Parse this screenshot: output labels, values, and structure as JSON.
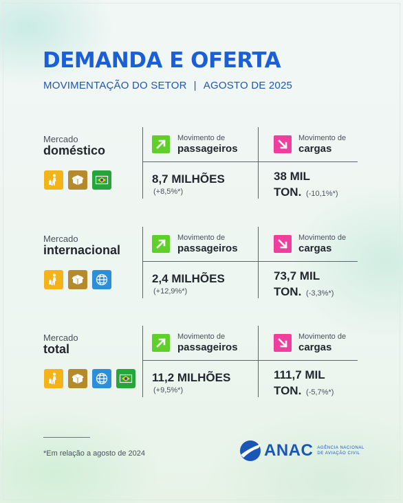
{
  "header": {
    "title": "DEMANDA E OFERTA",
    "subtitle_left": "MOVIMENTAÇÃO DO SETOR",
    "subtitle_sep": "|",
    "subtitle_right": "AGOSTO DE 2025"
  },
  "sections": [
    {
      "market_small": "Mercado",
      "market_big": "doméstico",
      "icons": [
        "passenger-icon",
        "cargo-box-icon",
        "brazil-flag-icon"
      ],
      "passengers_label_small": "Movimento de",
      "passengers_label_big": "passageiros",
      "passengers_value": "8,7 MILHÕES",
      "passengers_change": "(+8,5%*)",
      "cargo_label_small": "Movimento de",
      "cargo_label_big": "cargas",
      "cargo_value_line1": "38 MIL",
      "cargo_value_line2": "TON.",
      "cargo_change": "(-10,1%*)"
    },
    {
      "market_small": "Mercado",
      "market_big": "internacional",
      "icons": [
        "passenger-icon",
        "cargo-box-icon",
        "globe-icon"
      ],
      "passengers_label_small": "Movimento de",
      "passengers_label_big": "passageiros",
      "passengers_value": "2,4 MILHÕES",
      "passengers_change": "(+12,9%*)",
      "cargo_label_small": "Movimento de",
      "cargo_label_big": "cargas",
      "cargo_value_line1": "73,7 MIL",
      "cargo_value_line2": "TON.",
      "cargo_change": "(-3,3%*)"
    },
    {
      "market_small": "Mercado",
      "market_big": "total",
      "icons": [
        "passenger-icon",
        "cargo-box-icon",
        "globe-icon",
        "brazil-flag-icon"
      ],
      "passengers_label_small": "Movimento de",
      "passengers_label_big": "passageiros",
      "passengers_value": "11,2 MILHÕES",
      "passengers_change": "(+9,5%*)",
      "cargo_label_small": "Movimento de",
      "cargo_label_big": "cargas",
      "cargo_value_line1": "111,7 MIL",
      "cargo_value_line2": "TON.",
      "cargo_change": "(-5,7%*)"
    }
  ],
  "footer": {
    "footnote": "*Em relação a agosto de 2024",
    "logo_text": "ANAC",
    "logo_sub_line1": "AGÊNCIA NACIONAL",
    "logo_sub_line2": "DE AVIAÇÃO CIVIL"
  },
  "colors": {
    "title_blue": "#1a5fd6",
    "up_green": "#5fcf2a",
    "down_pink": "#ee3f9e",
    "icon_yellow": "#f3b41a",
    "icon_brown": "#b48a2c",
    "icon_green": "#27a53c",
    "icon_blue": "#2e8ed8"
  }
}
